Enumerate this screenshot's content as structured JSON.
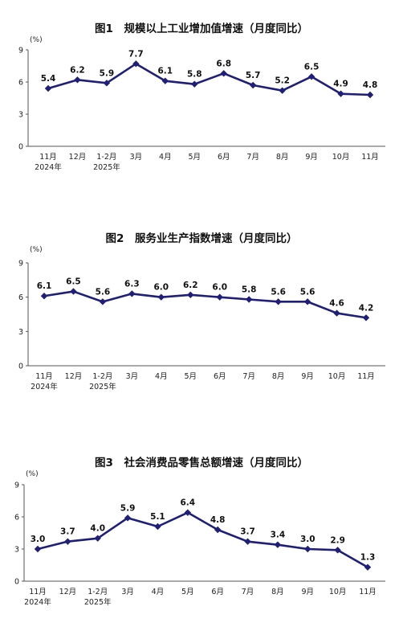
{
  "chart_data": [
    {
      "type": "line",
      "title": "图1　规模以上工业增加值增速（月度同比）",
      "unit": "(%)",
      "ylim": [
        0,
        9
      ],
      "yticks": [
        "0",
        "3",
        "6",
        "9"
      ],
      "categories": [
        "11月",
        "12月",
        "1-2月",
        "3月",
        "4月",
        "5月",
        "6月",
        "7月",
        "8月",
        "9月",
        "10月",
        "11月"
      ],
      "year_labels": [
        {
          "index": 0,
          "text": "2024年"
        },
        {
          "index": 2,
          "text": "2025年"
        }
      ],
      "values": [
        5.4,
        6.2,
        5.9,
        7.7,
        6.1,
        5.8,
        6.8,
        5.7,
        5.2,
        6.5,
        4.9,
        4.8
      ],
      "labels": [
        "5.4",
        "6.2",
        "5.9",
        "7.7",
        "6.1",
        "5.8",
        "6.8",
        "5.7",
        "5.2",
        "6.5",
        "4.9",
        "4.8"
      ],
      "color": "#1f1f7a",
      "grid": false,
      "legend": "none"
    },
    {
      "type": "line",
      "title": "图2　服务业生产指数增速（月度同比）",
      "unit": "(%)",
      "ylim": [
        0,
        9
      ],
      "yticks": [
        "0",
        "3",
        "6",
        "9"
      ],
      "categories": [
        "11月",
        "12月",
        "1-2月",
        "3月",
        "4月",
        "5月",
        "6月",
        "7月",
        "8月",
        "9月",
        "10月",
        "11月"
      ],
      "year_labels": [
        {
          "index": 0,
          "text": "2024年"
        },
        {
          "index": 2,
          "text": "2025年"
        }
      ],
      "values": [
        6.1,
        6.5,
        5.6,
        6.3,
        6.0,
        6.2,
        6.0,
        5.8,
        5.6,
        5.6,
        4.6,
        4.2
      ],
      "labels": [
        "6.1",
        "6.5",
        "5.6",
        "6.3",
        "6.0",
        "6.2",
        "6.0",
        "5.8",
        "5.6",
        "5.6",
        "4.6",
        "4.2"
      ],
      "color": "#1f1f7a",
      "grid": false,
      "legend": "none"
    },
    {
      "type": "line",
      "title": "图3　社会消费品零售总额增速（月度同比）",
      "unit": "(%)",
      "ylim": [
        0,
        9
      ],
      "yticks": [
        "0",
        "3",
        "6",
        "9"
      ],
      "categories": [
        "11月",
        "12月",
        "1-2月",
        "3月",
        "4月",
        "5月",
        "6月",
        "7月",
        "8月",
        "9月",
        "10月",
        "11月"
      ],
      "year_labels": [
        {
          "index": 0,
          "text": "2024年"
        },
        {
          "index": 2,
          "text": "2025年"
        }
      ],
      "values": [
        3.0,
        3.7,
        4.0,
        5.9,
        5.1,
        6.4,
        4.8,
        3.7,
        3.4,
        3.0,
        2.9,
        1.3
      ],
      "labels": [
        "3.0",
        "3.7",
        "4.0",
        "5.9",
        "5.1",
        "6.4",
        "4.8",
        "3.7",
        "3.4",
        "3.0",
        "2.9",
        "1.3"
      ],
      "color": "#1f1f7a",
      "grid": false,
      "legend": "none"
    }
  ]
}
